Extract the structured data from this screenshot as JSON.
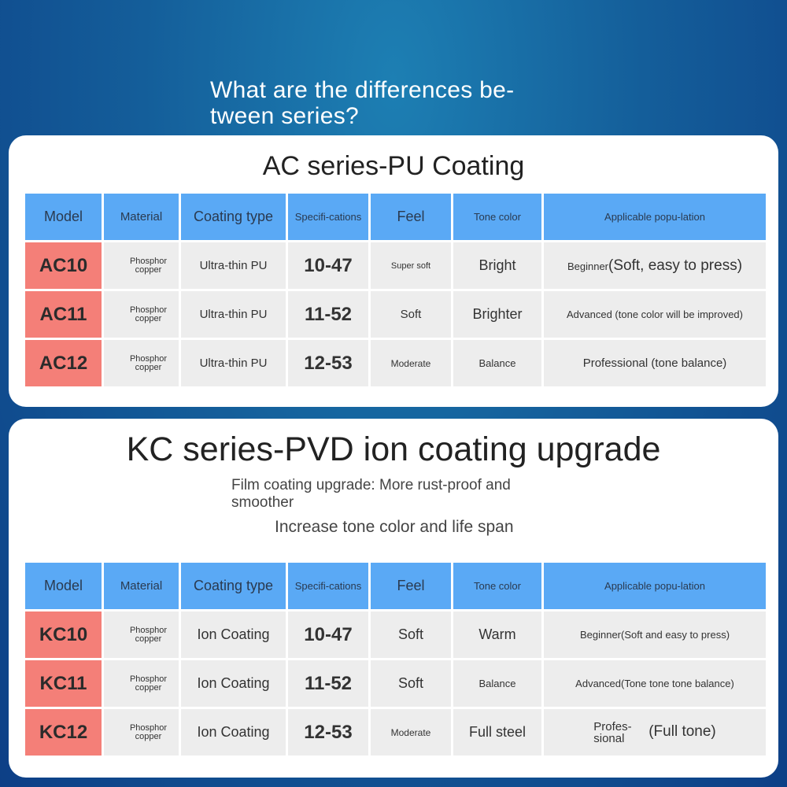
{
  "headline": "What are the differences be-tween series?",
  "ac": {
    "title": "AC series-PU Coating",
    "headers": {
      "model": "Model",
      "material": "Material",
      "coating": "Coating type",
      "spec": "Specifi-cations",
      "feel": "Feel",
      "tone": "Tone color",
      "app": "Applicable popu-lation"
    },
    "rows": [
      {
        "model": "AC10",
        "material": "Phosphor copper",
        "coating": "Ultra-thin PU",
        "spec": "10-47",
        "feel": "Super soft",
        "tone": "Bright",
        "app_a": "Beginner",
        "app_b": "(Soft, easy to press)"
      },
      {
        "model": "AC11",
        "material": "Phosphor copper",
        "coating": "Ultra-thin PU",
        "spec": "11-52",
        "feel": "Soft",
        "tone": "Brighter",
        "app": "Advanced (tone color will be improved)"
      },
      {
        "model": "AC12",
        "material": "Phosphor copper",
        "coating": "Ultra-thin PU",
        "spec": "12-53",
        "feel": "Moderate",
        "tone": "Balance",
        "app": "Professional (tone balance)"
      }
    ]
  },
  "kc": {
    "title": "KC series-PVD ion coating upgrade",
    "sub1": "Film coating upgrade: More rust-proof and smoother",
    "sub2": "Increase tone color and life span",
    "headers": {
      "model": "Model",
      "material": "Material",
      "coating": "Coating type",
      "spec": "Specifi-cations",
      "feel": "Feel",
      "tone": "Tone color",
      "app": "Applicable popu-lation"
    },
    "rows": [
      {
        "model": "KC10",
        "material": "Phosphor copper",
        "coating": "Ion Coating",
        "spec": "10-47",
        "feel": "Soft",
        "tone": "Warm",
        "app": "Beginner(Soft and easy to press)"
      },
      {
        "model": "KC11",
        "material": "Phosphor copper",
        "coating": "Ion Coating",
        "spec": "11-52",
        "feel": "Soft",
        "tone": "Balance",
        "app_a": "Advanced",
        "app_b": "(Tone tone tone balance)"
      },
      {
        "model": "KC12",
        "material": "Phosphor copper",
        "coating": "Ion Coating",
        "spec": "12-53",
        "feel": "Moderate",
        "tone": "Full steel",
        "app_a": "Profes-sional",
        "app_b": "(Full tone)"
      }
    ]
  }
}
